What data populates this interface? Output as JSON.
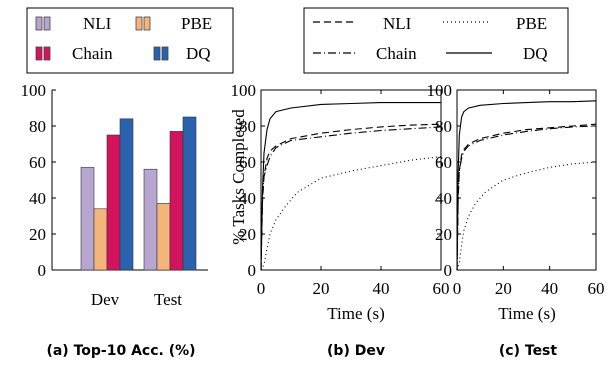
{
  "captions": {
    "a": "(a) Top-10 Acc. (%)",
    "b": "(b) Dev",
    "c": "(c) Test"
  },
  "colors": {
    "NLI": "#b7a6d0",
    "PBE": "#f4b57d",
    "Chain": "#d4135f",
    "DQ": "#2a63ad"
  },
  "chart_data": [
    {
      "type": "bar",
      "categories": [
        "Dev",
        "Test"
      ],
      "series": [
        {
          "name": "NLI",
          "values": [
            57,
            56
          ]
        },
        {
          "name": "PBE",
          "values": [
            34,
            37
          ]
        },
        {
          "name": "Chain",
          "values": [
            75,
            77
          ]
        },
        {
          "name": "DQ",
          "values": [
            84,
            85
          ]
        }
      ],
      "ylim": [
        0,
        100
      ],
      "yticks": [
        "0",
        "20",
        "40",
        "60",
        "80",
        "100"
      ],
      "legend": "top"
    },
    {
      "type": "line",
      "xlabel": "Time (s)",
      "ylabel": "% Tasks Completed",
      "xlim": [
        0,
        60
      ],
      "ylim": [
        0,
        100
      ],
      "xticks": [
        "0",
        "20",
        "40",
        "60"
      ],
      "yticks": [
        "0",
        "20",
        "40",
        "60",
        "80",
        "100"
      ],
      "legend": "top",
      "series": [
        {
          "name": "NLI",
          "style": "dashed",
          "x": [
            0,
            0.5,
            1,
            2,
            3,
            5,
            10,
            20,
            30,
            40,
            50,
            60
          ],
          "y": [
            0,
            38,
            52,
            62,
            66,
            69,
            73,
            76,
            78,
            79.5,
            80.5,
            81
          ]
        },
        {
          "name": "Chain",
          "style": "dashdot",
          "x": [
            0,
            0.5,
            1,
            2,
            3,
            5,
            10,
            20,
            30,
            40,
            50,
            60
          ],
          "y": [
            0,
            40,
            52,
            58,
            63,
            68,
            72,
            74,
            76,
            77.5,
            78.5,
            79.5
          ]
        },
        {
          "name": "PBE",
          "style": "dotted",
          "x": [
            0,
            1,
            2,
            3,
            5,
            8,
            12,
            20,
            30,
            40,
            50,
            60
          ],
          "y": [
            0,
            3,
            12,
            20,
            28,
            35,
            43,
            51,
            55,
            58,
            61,
            63
          ]
        },
        {
          "name": "DQ",
          "style": "solid",
          "x": [
            0,
            0.5,
            1,
            2,
            3,
            5,
            10,
            20,
            30,
            40,
            50,
            60
          ],
          "y": [
            0,
            45,
            65,
            78,
            84,
            88,
            90,
            92,
            92.5,
            93,
            93,
            93
          ]
        }
      ]
    },
    {
      "type": "line",
      "xlabel": "Time (s)",
      "xlim": [
        0,
        60
      ],
      "ylim": [
        0,
        100
      ],
      "xticks": [
        "0",
        "20",
        "40",
        "60"
      ],
      "yticks": [
        "0",
        "20",
        "40",
        "60",
        "80",
        "100"
      ],
      "series": [
        {
          "name": "NLI",
          "style": "dashed",
          "x": [
            0,
            0.5,
            1,
            2,
            3,
            5,
            10,
            20,
            30,
            40,
            50,
            60
          ],
          "y": [
            0,
            40,
            55,
            64,
            67,
            70,
            73,
            76,
            78,
            79,
            80,
            81
          ]
        },
        {
          "name": "Chain",
          "style": "dashdot",
          "x": [
            0,
            0.5,
            1,
            2,
            3,
            5,
            10,
            20,
            30,
            40,
            50,
            60
          ],
          "y": [
            0,
            42,
            55,
            62,
            66,
            69,
            72,
            75,
            77,
            78.5,
            79.5,
            80
          ]
        },
        {
          "name": "PBE",
          "style": "dotted",
          "x": [
            0,
            1,
            2,
            3,
            5,
            8,
            12,
            20,
            30,
            40,
            50,
            60
          ],
          "y": [
            0,
            4,
            14,
            22,
            30,
            37,
            43,
            50,
            54,
            57,
            59,
            60
          ]
        },
        {
          "name": "DQ",
          "style": "solid",
          "x": [
            0,
            0.5,
            1,
            2,
            3,
            5,
            10,
            20,
            30,
            40,
            50,
            60
          ],
          "y": [
            0,
            55,
            75,
            85,
            88,
            90,
            91.5,
            92.5,
            93,
            93.5,
            93.5,
            94
          ]
        }
      ]
    }
  ]
}
